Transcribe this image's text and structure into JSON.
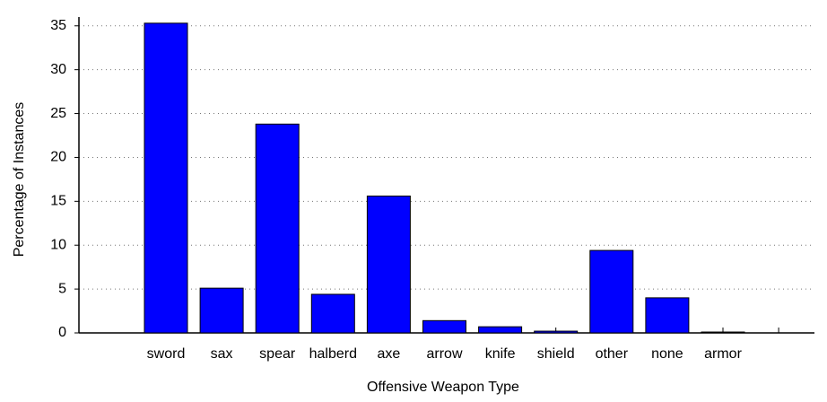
{
  "chart_data": {
    "type": "bar",
    "x_label": "Offensive Weapon Type",
    "y_label": "Percentage of Instances",
    "categories": [
      "sword",
      "sax",
      "spear",
      "halberd",
      "axe",
      "arrow",
      "knife",
      "shield",
      "other",
      "none",
      "armor"
    ],
    "values": [
      35.3,
      5.1,
      23.8,
      4.4,
      15.6,
      1.4,
      0.7,
      0.2,
      9.4,
      4.0,
      0.1
    ],
    "color": "#0000ff",
    "ylim": [
      0,
      36
    ],
    "yticks": [
      0,
      5,
      10,
      15,
      20,
      25,
      30,
      35
    ],
    "grid": true
  }
}
